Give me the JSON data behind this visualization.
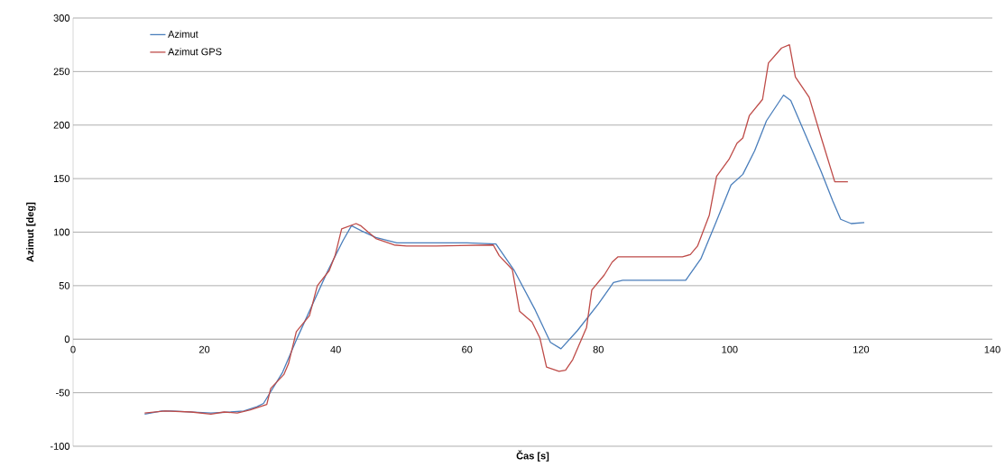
{
  "chart_data": {
    "type": "line",
    "xlabel": "Čas [s]",
    "ylabel": "Azimut [deg]",
    "xlim": [
      0,
      140
    ],
    "ylim": [
      -100,
      300
    ],
    "xticks": [
      0,
      20,
      40,
      60,
      80,
      100,
      120,
      140
    ],
    "yticks": [
      -100,
      -50,
      0,
      50,
      100,
      150,
      200,
      250,
      300
    ],
    "grid": "y",
    "legend": "top left",
    "marker": "none",
    "line_style": "solid",
    "series": [
      {
        "name": "Azimut",
        "color": "#4a7ebb",
        "x": [
          10.9,
          13.5,
          15,
          21,
          24,
          26,
          28,
          29,
          31.9,
          34.2,
          36.5,
          38.8,
          41.1,
          42.4,
          44,
          46.1,
          49.3,
          55,
          60,
          64.4,
          67.2,
          70.4,
          72.7,
          74.3,
          76.8,
          80,
          82.3,
          83.7,
          88,
          93.3,
          95.6,
          97.9,
          100.2,
          102,
          103.8,
          105.6,
          108.2,
          109.3,
          111.6,
          113.9,
          115.7,
          116.9,
          118.5,
          120.5
        ],
        "values": [
          -70,
          -67,
          -67,
          -69,
          -68,
          -67,
          -63,
          -60,
          -31,
          2,
          33,
          64,
          92,
          106,
          101,
          95,
          90,
          90,
          90,
          89,
          64,
          27,
          -3,
          -9,
          8,
          33,
          53,
          55,
          55,
          55,
          75,
          109,
          144,
          154,
          176,
          204,
          228,
          223,
          190,
          157,
          129,
          112,
          108,
          109
        ]
      },
      {
        "name": "Azimut GPS",
        "color": "#be4b48",
        "x": [
          10.9,
          14,
          18,
          21,
          23,
          25,
          27,
          29.5,
          30.1,
          32.1,
          32.8,
          34,
          36,
          37.2,
          39,
          39.9,
          40.9,
          43.1,
          43.8,
          46.1,
          48.9,
          50.8,
          55.3,
          64,
          64.9,
          66.9,
          68,
          69.9,
          71.1,
          72.1,
          74,
          75,
          76.1,
          78.2,
          79,
          80.9,
          82.1,
          83,
          86,
          92.8,
          94,
          95.1,
          96.9,
          98,
          99.9,
          101.1,
          102,
          103,
          105,
          105.9,
          107.9,
          109.1,
          110,
          112.1,
          113.9,
          116,
          118
        ],
        "values": [
          -69,
          -67,
          -68,
          -70,
          -68,
          -69,
          -66,
          -61,
          -46,
          -33,
          -23,
          7,
          22,
          50,
          64,
          78,
          103,
          108,
          106,
          94,
          88,
          87,
          87,
          88,
          78,
          65,
          26,
          16,
          1,
          -26,
          -30,
          -29,
          -19,
          11,
          46,
          60,
          72,
          77,
          77,
          77,
          79,
          87,
          116,
          152,
          168,
          183,
          188,
          209,
          224,
          258,
          272,
          275,
          245,
          226,
          189,
          147,
          147
        ]
      }
    ]
  }
}
